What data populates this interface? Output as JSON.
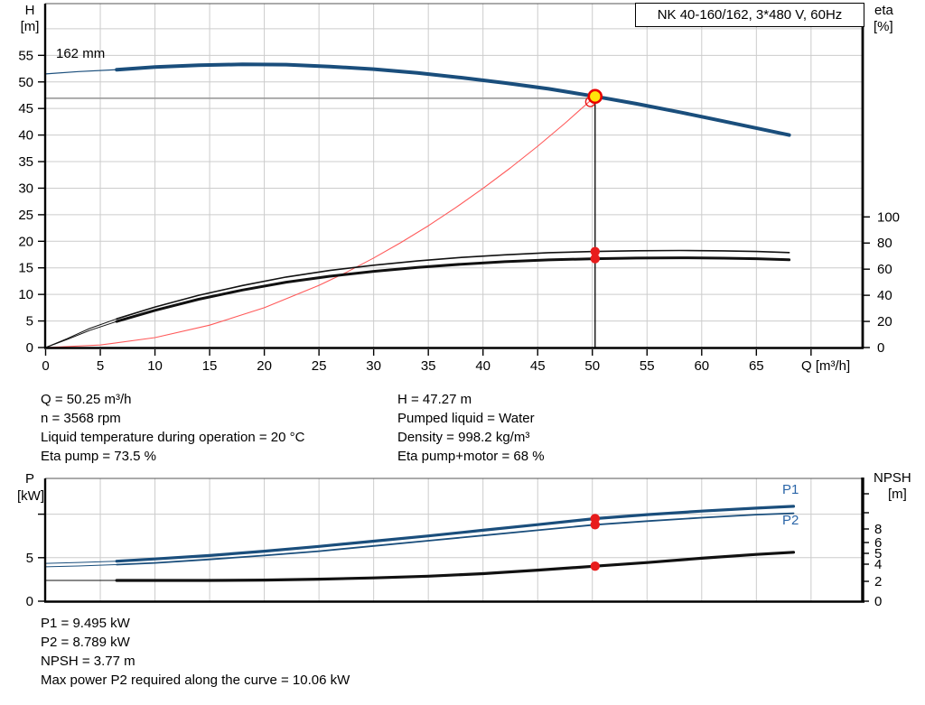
{
  "title_box": {
    "label": "NK 40-160/162, 3*480 V, 60Hz"
  },
  "labels": {
    "p1": "P1",
    "p2": "P2"
  },
  "colors": {
    "curve_blue": "#1a4e7c",
    "label_blue": "#2b66a8",
    "black": "#111111",
    "red": "#e81c1c",
    "duty_red": "#ff5a5a",
    "yellow": "#ffe40a",
    "grid": "#cccccc",
    "gray_line": "#9b9b9b"
  },
  "chart_data": [
    {
      "id": "qh-eta-chart",
      "type": "line",
      "x_axis": {
        "label": "Q [m³/h]",
        "min": 0,
        "max": 74.8,
        "ticks": [
          {
            "q": 0,
            "label": "0"
          },
          {
            "q": 5,
            "label": "5"
          },
          {
            "q": 10,
            "label": "10"
          },
          {
            "q": 15,
            "label": "15"
          },
          {
            "q": 20,
            "label": "20"
          },
          {
            "q": 25,
            "label": "25"
          },
          {
            "q": 30,
            "label": "30"
          },
          {
            "q": 35,
            "label": "35"
          },
          {
            "q": 40,
            "label": "40"
          },
          {
            "q": 45,
            "label": "45"
          },
          {
            "q": 50,
            "label": "50"
          },
          {
            "q": 55,
            "label": "55"
          },
          {
            "q": 60,
            "label": "60"
          },
          {
            "q": 65,
            "label": "65"
          },
          {
            "q": 70,
            "label": ""
          }
        ]
      },
      "y_left": {
        "label": "H",
        "unit": "[m]",
        "min": 0,
        "max": 64.7,
        "ticks": [
          0,
          5,
          10,
          15,
          20,
          25,
          30,
          35,
          40,
          45,
          50,
          55
        ]
      },
      "y_right": {
        "label": "eta",
        "unit": "[%]",
        "min": 0,
        "max": 100,
        "ticks": [
          0,
          20,
          40,
          60,
          80,
          100
        ]
      },
      "impeller_label": "162 mm",
      "grid": true,
      "series": [
        {
          "name": "duty-curve",
          "axis": "left",
          "color": "duty_red",
          "width": 1.1,
          "points": [
            [
              0,
              0
            ],
            [
              5,
              0.47
            ],
            [
              10,
              1.87
            ],
            [
              15,
              4.21
            ],
            [
              20,
              7.49
            ],
            [
              25,
              11.7
            ],
            [
              27.5,
              14.16
            ],
            [
              30,
              16.85
            ],
            [
              32.5,
              19.78
            ],
            [
              35,
              22.93
            ],
            [
              37.5,
              26.32
            ],
            [
              40,
              29.95
            ],
            [
              42.5,
              33.81
            ],
            [
              45,
              37.9
            ],
            [
              47.5,
              42.23
            ],
            [
              50.25,
              47.27
            ]
          ]
        },
        {
          "name": "eta-pump-thin",
          "axis": "right",
          "color": "black",
          "width": 1,
          "points": [
            [
              0,
              0
            ],
            [
              2,
              7
            ],
            [
              4,
              14.5
            ],
            [
              6.5,
              22
            ]
          ]
        },
        {
          "name": "eta-pump-curve",
          "axis": "right",
          "color": "black",
          "width": 1.6,
          "points": [
            [
              6.5,
              22
            ],
            [
              10,
              31
            ],
            [
              14,
              40
            ],
            [
              18,
              47.5
            ],
            [
              22,
              54
            ],
            [
              26,
              59
            ],
            [
              30,
              63
            ],
            [
              34,
              66.3
            ],
            [
              38,
              69
            ],
            [
              42,
              71
            ],
            [
              46,
              72.6
            ],
            [
              50.25,
              73.5
            ],
            [
              54,
              74.1
            ],
            [
              58,
              74.3
            ],
            [
              62,
              74
            ],
            [
              65,
              73.5
            ],
            [
              68,
              72.7
            ]
          ]
        },
        {
          "name": "eta-pump-motor-thin",
          "axis": "right",
          "color": "black",
          "width": 1,
          "points": [
            [
              0,
              0
            ],
            [
              2,
              6.3
            ],
            [
              4,
              13
            ],
            [
              6.5,
              20
            ]
          ]
        },
        {
          "name": "eta-pump-motor-curve",
          "axis": "right",
          "color": "black",
          "width": 3,
          "points": [
            [
              6.5,
              20
            ],
            [
              10,
              28.5
            ],
            [
              14,
              37
            ],
            [
              18,
              44
            ],
            [
              22,
              50
            ],
            [
              26,
              54.6
            ],
            [
              30,
              58.3
            ],
            [
              34,
              61.3
            ],
            [
              38,
              63.8
            ],
            [
              42,
              65.7
            ],
            [
              46,
              67.1
            ],
            [
              50.25,
              68
            ],
            [
              54,
              68.5
            ],
            [
              58,
              68.7
            ],
            [
              62,
              68.4
            ],
            [
              65,
              68
            ],
            [
              68,
              67.2
            ]
          ]
        },
        {
          "name": "qh-thin",
          "axis": "left",
          "color": "curve_blue",
          "width": 1.2,
          "points": [
            [
              0,
              51.5
            ],
            [
              3,
              51.95
            ],
            [
              6.5,
              52.3
            ]
          ]
        },
        {
          "name": "qh-curve",
          "axis": "left",
          "color": "curve_blue",
          "width": 4,
          "points": [
            [
              6.5,
              52.3
            ],
            [
              10,
              52.8
            ],
            [
              14,
              53.15
            ],
            [
              18,
              53.3
            ],
            [
              22,
              53.25
            ],
            [
              26,
              52.9
            ],
            [
              30,
              52.4
            ],
            [
              34,
              51.7
            ],
            [
              38,
              50.8
            ],
            [
              42,
              49.8
            ],
            [
              46,
              48.7
            ],
            [
              50.25,
              47.27
            ],
            [
              54,
              45.9
            ],
            [
              58,
              44.3
            ],
            [
              62,
              42.6
            ],
            [
              65,
              41.3
            ],
            [
              68,
              40.0
            ]
          ]
        }
      ],
      "operating_point": {
        "q": 50.25,
        "h": 47.27,
        "eta_pump": 73.5,
        "eta_pump_motor": 68
      }
    },
    {
      "id": "power-npsh-chart",
      "type": "line",
      "x_axis": {
        "label": "",
        "min": 0,
        "max": 74.8,
        "ticks": []
      },
      "y_left": {
        "label": "P",
        "unit": "[kW]",
        "min": 0,
        "max": 14.1,
        "ticks": [
          {
            "v": 0,
            "label": "0"
          },
          {
            "v": 5,
            "label": "5"
          },
          {
            "v": 10,
            "label": ""
          }
        ]
      },
      "y_right": {
        "label": "NPSH",
        "unit": "[m]",
        "min": 0,
        "ticks": [
          {
            "off": 0,
            "label": "0"
          },
          {
            "off": 22,
            "label": "2"
          },
          {
            "off": 41,
            "label": "4"
          },
          {
            "off": 53,
            "label": "5"
          },
          {
            "off": 65,
            "label": "6"
          },
          {
            "off": 80,
            "label": "8"
          },
          {
            "off": 98,
            "label": ""
          },
          {
            "off": 119,
            "label": ""
          }
        ],
        "scale_points": [
          [
            0,
            0
          ],
          [
            2,
            22
          ],
          [
            4,
            41
          ],
          [
            5,
            53
          ],
          [
            6,
            65
          ],
          [
            8,
            80
          ]
        ]
      },
      "grid": true,
      "series": [
        {
          "name": "npsh-thin",
          "axis": "right",
          "color": "black",
          "width": 1,
          "points": [
            [
              0,
              2.1
            ],
            [
              6.5,
              2.1
            ]
          ]
        },
        {
          "name": "npsh-curve",
          "axis": "right",
          "color": "black",
          "width": 3.2,
          "points": [
            [
              6.5,
              2.1
            ],
            [
              15,
              2.1
            ],
            [
              20,
              2.15
            ],
            [
              25,
              2.25
            ],
            [
              30,
              2.4
            ],
            [
              35,
              2.6
            ],
            [
              40,
              2.9
            ],
            [
              45,
              3.3
            ],
            [
              50.25,
              3.77
            ],
            [
              55,
              4.15
            ],
            [
              60,
              4.55
            ],
            [
              65,
              4.9
            ],
            [
              68.4,
              5.1
            ]
          ]
        },
        {
          "name": "p2-thin",
          "axis": "left",
          "color": "curve_blue",
          "width": 1,
          "points": [
            [
              0,
              3.95
            ],
            [
              3,
              4.05
            ],
            [
              6.5,
              4.2
            ]
          ]
        },
        {
          "name": "p2-curve",
          "axis": "left",
          "color": "curve_blue",
          "width": 1.8,
          "points": [
            [
              6.5,
              4.2
            ],
            [
              10,
              4.4
            ],
            [
              15,
              4.8
            ],
            [
              20,
              5.25
            ],
            [
              25,
              5.75
            ],
            [
              30,
              6.35
            ],
            [
              35,
              6.95
            ],
            [
              40,
              7.55
            ],
            [
              45,
              8.15
            ],
            [
              50.25,
              8.789
            ],
            [
              55,
              9.2
            ],
            [
              60,
              9.6
            ],
            [
              65,
              9.95
            ],
            [
              68.4,
              10.1
            ]
          ]
        },
        {
          "name": "p1-thin",
          "axis": "left",
          "color": "curve_blue",
          "width": 1,
          "points": [
            [
              0,
              4.35
            ],
            [
              3,
              4.45
            ],
            [
              6.5,
              4.6
            ]
          ]
        },
        {
          "name": "p1-curve",
          "axis": "left",
          "color": "curve_blue",
          "width": 3.2,
          "points": [
            [
              6.5,
              4.6
            ],
            [
              10,
              4.85
            ],
            [
              15,
              5.25
            ],
            [
              20,
              5.75
            ],
            [
              25,
              6.3
            ],
            [
              30,
              6.9
            ],
            [
              35,
              7.5
            ],
            [
              40,
              8.15
            ],
            [
              45,
              8.8
            ],
            [
              50.25,
              9.495
            ],
            [
              55,
              9.95
            ],
            [
              60,
              10.35
            ],
            [
              65,
              10.7
            ],
            [
              68.4,
              10.9
            ]
          ]
        }
      ],
      "operating_point": {
        "q": 50.25,
        "p1": 9.495,
        "p2": 8.789,
        "npsh": 3.77
      }
    }
  ],
  "info_top_left": [
    "Q = 50.25 m³/h",
    "n = 3568 rpm",
    "Liquid temperature during operation = 20 °C",
    "Eta pump = 73.5 %"
  ],
  "info_top_right": [
    "H = 47.27 m",
    "Pumped liquid = Water",
    "Density = 998.2 kg/m³",
    "Eta pump+motor = 68 %"
  ],
  "info_bottom": [
    "P1 = 9.495 kW",
    "P2 = 8.789 kW",
    "NPSH = 3.77 m",
    "Max power P2 required along the curve = 10.06 kW"
  ]
}
